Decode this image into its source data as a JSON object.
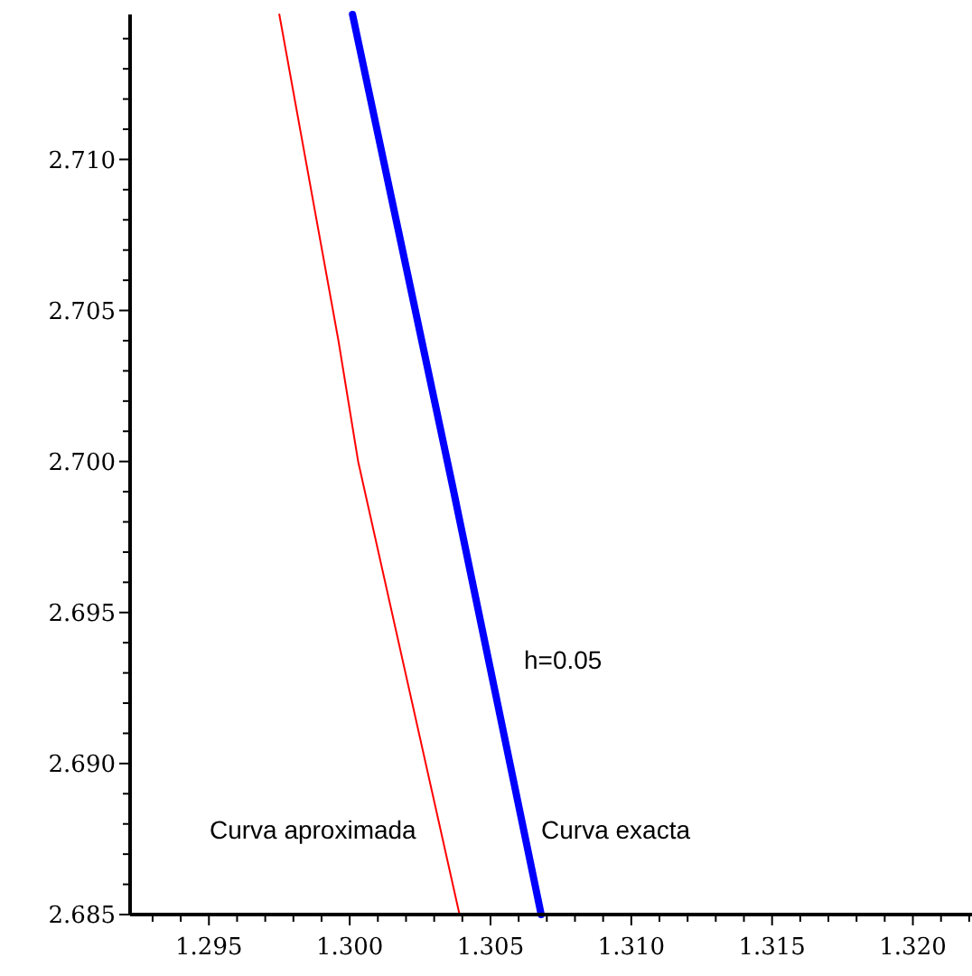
{
  "chart_data": {
    "type": "line",
    "annotations": [
      "h=0.05"
    ],
    "xlim": [
      1.2922,
      1.3221
    ],
    "ylim": [
      2.685,
      2.7148
    ],
    "xticks": [
      {
        "value": 1.293,
        "label": null
      },
      {
        "value": 1.294,
        "label": null
      },
      {
        "value": 1.295,
        "label": "1.295"
      },
      {
        "value": 1.296,
        "label": null
      },
      {
        "value": 1.297,
        "label": null
      },
      {
        "value": 1.298,
        "label": null
      },
      {
        "value": 1.299,
        "label": null
      },
      {
        "value": 1.3,
        "label": "1.300"
      },
      {
        "value": 1.301,
        "label": null
      },
      {
        "value": 1.302,
        "label": null
      },
      {
        "value": 1.303,
        "label": null
      },
      {
        "value": 1.304,
        "label": null
      },
      {
        "value": 1.305,
        "label": "1.305"
      },
      {
        "value": 1.306,
        "label": null
      },
      {
        "value": 1.307,
        "label": null
      },
      {
        "value": 1.308,
        "label": null
      },
      {
        "value": 1.309,
        "label": null
      },
      {
        "value": 1.31,
        "label": "1.310"
      },
      {
        "value": 1.311,
        "label": null
      },
      {
        "value": 1.312,
        "label": null
      },
      {
        "value": 1.313,
        "label": null
      },
      {
        "value": 1.314,
        "label": null
      },
      {
        "value": 1.315,
        "label": "1.315"
      },
      {
        "value": 1.316,
        "label": null
      },
      {
        "value": 1.317,
        "label": null
      },
      {
        "value": 1.318,
        "label": null
      },
      {
        "value": 1.319,
        "label": null
      },
      {
        "value": 1.32,
        "label": "1.320"
      },
      {
        "value": 1.321,
        "label": null
      },
      {
        "value": 1.322,
        "label": null
      }
    ],
    "yticks": [
      {
        "value": 2.685,
        "label": "2.685"
      },
      {
        "value": 2.686,
        "label": null
      },
      {
        "value": 2.687,
        "label": null
      },
      {
        "value": 2.688,
        "label": null
      },
      {
        "value": 2.689,
        "label": null
      },
      {
        "value": 2.69,
        "label": "2.690"
      },
      {
        "value": 2.691,
        "label": null
      },
      {
        "value": 2.692,
        "label": null
      },
      {
        "value": 2.693,
        "label": null
      },
      {
        "value": 2.694,
        "label": null
      },
      {
        "value": 2.695,
        "label": "2.695"
      },
      {
        "value": 2.696,
        "label": null
      },
      {
        "value": 2.697,
        "label": null
      },
      {
        "value": 2.698,
        "label": null
      },
      {
        "value": 2.699,
        "label": null
      },
      {
        "value": 2.7,
        "label": "2.700"
      },
      {
        "value": 2.701,
        "label": null
      },
      {
        "value": 2.702,
        "label": null
      },
      {
        "value": 2.703,
        "label": null
      },
      {
        "value": 2.704,
        "label": null
      },
      {
        "value": 2.705,
        "label": "2.705"
      },
      {
        "value": 2.706,
        "label": null
      },
      {
        "value": 2.707,
        "label": null
      },
      {
        "value": 2.708,
        "label": null
      },
      {
        "value": 2.709,
        "label": null
      },
      {
        "value": 2.71,
        "label": "2.710"
      },
      {
        "value": 2.711,
        "label": null
      },
      {
        "value": 2.712,
        "label": null
      },
      {
        "value": 2.713,
        "label": null
      },
      {
        "value": 2.714,
        "label": null
      }
    ],
    "series": [
      {
        "name": "Curva aproximada",
        "color": "#ff0000",
        "x": [
          1.2975,
          1.2996,
          1.3003,
          1.3039
        ],
        "values": [
          2.7148,
          2.704,
          2.7,
          2.685
        ]
      },
      {
        "name": "Curva exacta",
        "color": "#0000ff",
        "x": [
          1.3001,
          1.30365,
          1.3068
        ],
        "values": [
          2.7148,
          2.6992,
          2.685
        ]
      }
    ]
  }
}
